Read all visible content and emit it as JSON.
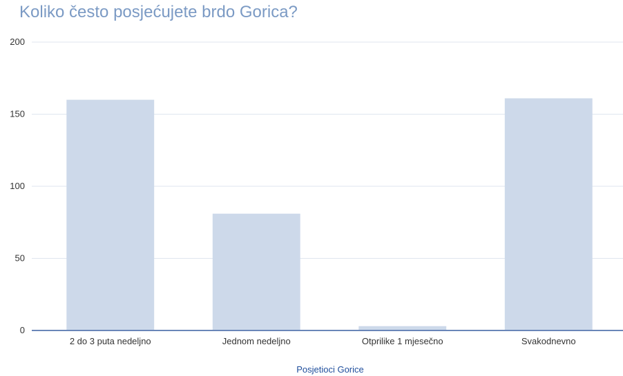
{
  "chart_data": {
    "type": "bar",
    "title": "Koliko često posjećujete brdo Gorica?",
    "xlabel": "Posjetioci Gorice",
    "ylabel": "",
    "categories": [
      "2 do 3 puta nedeljno",
      "Jednom nedeljno",
      "Otprilike 1 mjesečno",
      "Svakodnevno"
    ],
    "values": [
      160,
      81,
      3,
      161
    ],
    "ylim": [
      0,
      200
    ],
    "yticks": [
      0,
      50,
      100,
      150,
      200
    ],
    "grid": true,
    "legend": "none",
    "bar_color": "#cdd9ea",
    "grid_color": "#dfe6ef",
    "axis_color": "#6a86b8",
    "title_color": "#7b9ac4",
    "xlabel_color": "#1f4e9c"
  }
}
